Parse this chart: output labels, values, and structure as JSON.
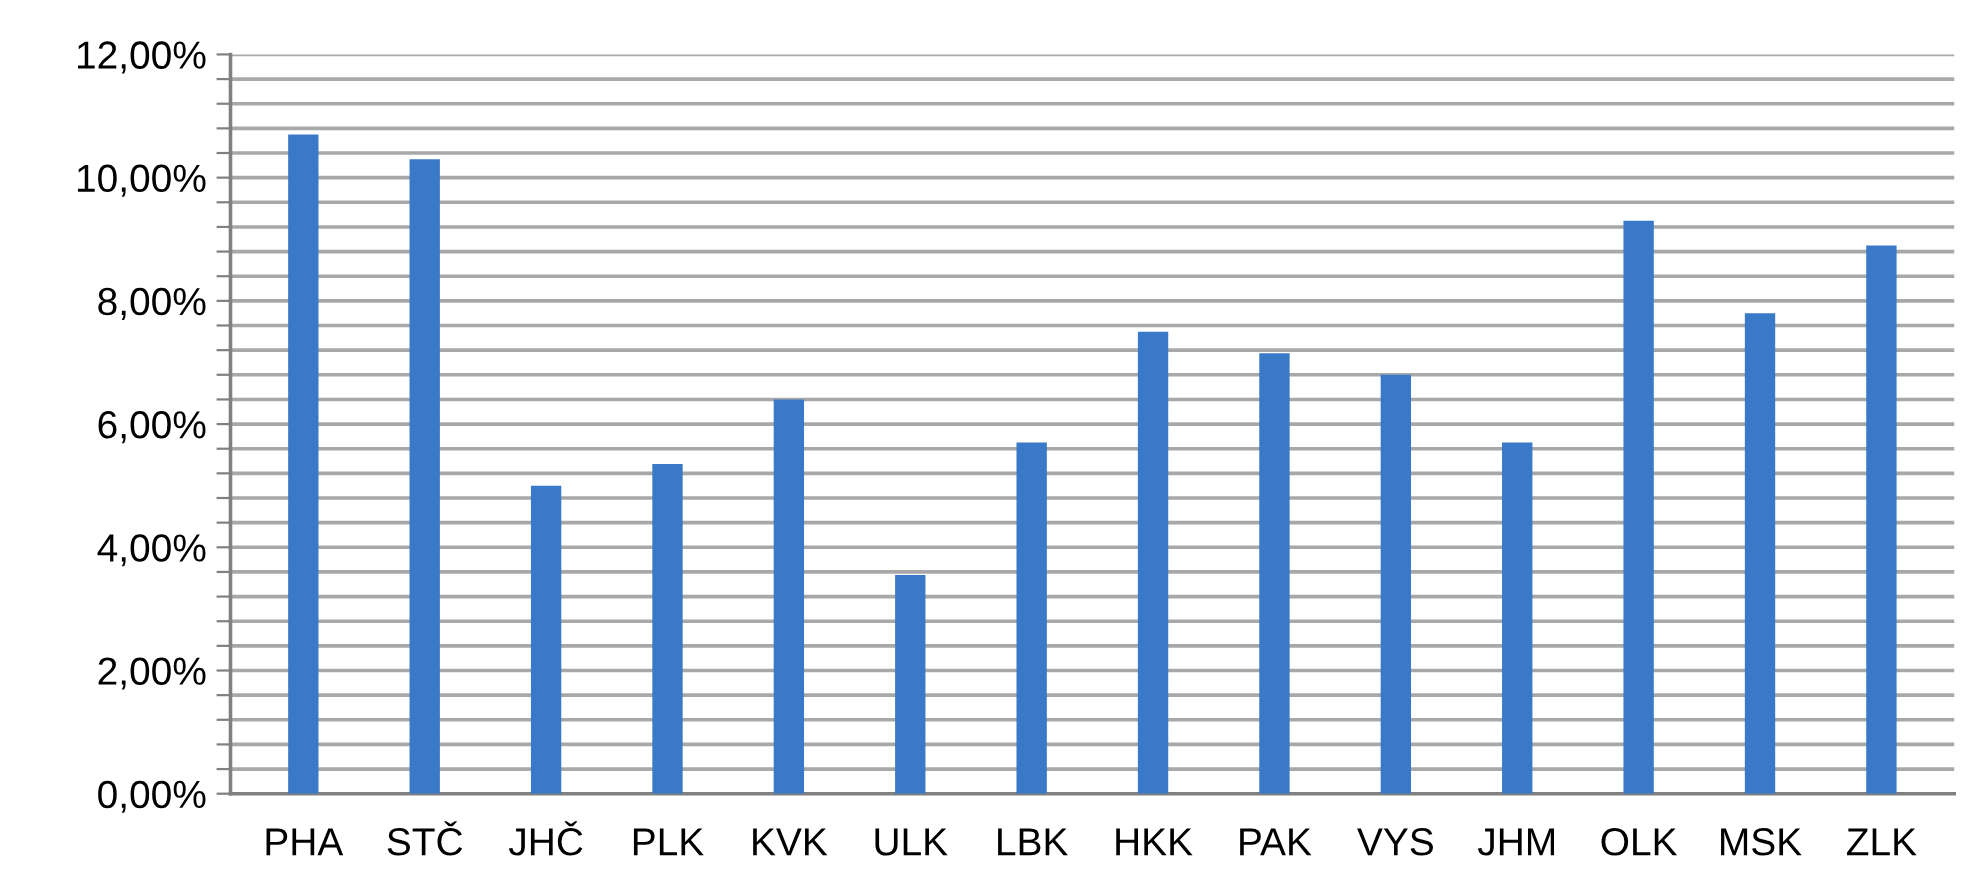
{
  "chart_data": {
    "type": "bar",
    "categories": [
      "PHA",
      "STČ",
      "JHČ",
      "PLK",
      "KVK",
      "ULK",
      "LBK",
      "HKK",
      "PAK",
      "VYS",
      "JHM",
      "OLK",
      "MSK",
      "ZLK"
    ],
    "values": [
      10.7,
      10.3,
      5.0,
      5.35,
      6.4,
      3.55,
      5.7,
      7.5,
      7.15,
      6.8,
      5.7,
      9.3,
      7.8,
      8.9
    ],
    "color": "#3a78c8",
    "ylim": [
      0,
      12
    ],
    "yticks": [
      {
        "value": 0,
        "label": "0,00%"
      },
      {
        "value": 0.4,
        "label": null
      },
      {
        "value": 0.8,
        "label": null
      },
      {
        "value": 1.2,
        "label": null
      },
      {
        "value": 1.6,
        "label": null
      },
      {
        "value": 2,
        "label": "2,00%"
      },
      {
        "value": 2.4,
        "label": null
      },
      {
        "value": 2.8,
        "label": null
      },
      {
        "value": 3.2,
        "label": null
      },
      {
        "value": 3.6,
        "label": null
      },
      {
        "value": 4,
        "label": "4,00%"
      },
      {
        "value": 4.4,
        "label": null
      },
      {
        "value": 4.8,
        "label": null
      },
      {
        "value": 5.2,
        "label": null
      },
      {
        "value": 5.6,
        "label": null
      },
      {
        "value": 6,
        "label": "6,00%"
      },
      {
        "value": 6.4,
        "label": null
      },
      {
        "value": 6.8,
        "label": null
      },
      {
        "value": 7.2,
        "label": null
      },
      {
        "value": 7.6,
        "label": null
      },
      {
        "value": 8,
        "label": "8,00%"
      },
      {
        "value": 8.4,
        "label": null
      },
      {
        "value": 8.8,
        "label": null
      },
      {
        "value": 9.2,
        "label": null
      },
      {
        "value": 9.6,
        "label": null
      },
      {
        "value": 10,
        "label": "10,00%"
      },
      {
        "value": 10.4,
        "label": null
      },
      {
        "value": 10.8,
        "label": null
      },
      {
        "value": 11.2,
        "label": null
      },
      {
        "value": 11.6,
        "label": null
      },
      {
        "value": 12,
        "label": "12,00%"
      }
    ],
    "grid": "y"
  }
}
